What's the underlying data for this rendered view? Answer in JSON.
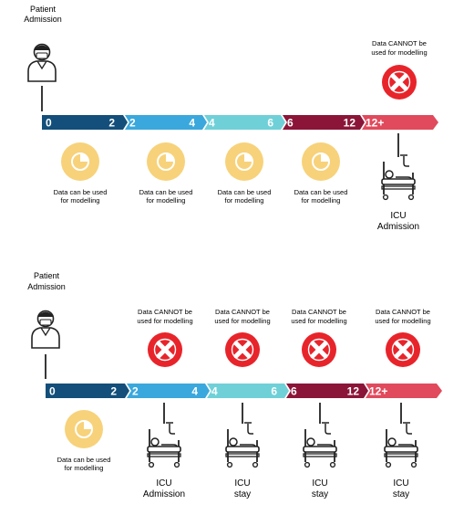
{
  "panel1": {
    "admission_label_line1": "Patient",
    "admission_label_line2": "Admission",
    "segments": [
      {
        "start": "0",
        "end": "2",
        "color": "#134f7a"
      },
      {
        "start": "2",
        "end": "4",
        "color": "#3aa8dc"
      },
      {
        "start": "4",
        "end": "6",
        "color": "#6fd0d8"
      },
      {
        "start": "6",
        "end": "12",
        "color": "#8b1538"
      },
      {
        "start": "12+",
        "end": "",
        "color": "#e14a5c"
      }
    ],
    "usable_note_line1": "Data can be used",
    "usable_note_line2": "for modelling",
    "cannot_note_line1": "Data CANNOT  be",
    "cannot_note_line2": "used for modelling",
    "icu_label_line1": "ICU",
    "icu_label_line2": "Admission"
  },
  "panel2": {
    "admission_label_line1": "Patient",
    "admission_label_line2": "Admission",
    "segments": [
      {
        "start": "0",
        "end": "2",
        "color": "#134f7a"
      },
      {
        "start": "2",
        "end": "4",
        "color": "#3aa8dc"
      },
      {
        "start": "4",
        "end": "6",
        "color": "#6fd0d8"
      },
      {
        "start": "6",
        "end": "12",
        "color": "#8b1538"
      },
      {
        "start": "12+",
        "end": "",
        "color": "#e14a5c"
      }
    ],
    "usable_note_line1": "Data can be used",
    "usable_note_line2": "for modelling",
    "cannot_note_line1": "Data CANNOT  be",
    "cannot_note_line2": "used for modelling",
    "icu_labels": [
      {
        "line1": "ICU",
        "line2": "Admission"
      },
      {
        "line1": "ICU",
        "line2": "stay"
      },
      {
        "line1": "ICU",
        "line2": "stay"
      },
      {
        "line1": "ICU",
        "line2": "stay"
      }
    ]
  },
  "colors": {
    "usable_circle": "#f7d27a",
    "cannot_circle": "#e8242b",
    "icon_stroke": "#222222"
  },
  "icons": [
    "patient-icon",
    "pie-chart-icon",
    "cross-icon",
    "hospital-bed-icon"
  ]
}
